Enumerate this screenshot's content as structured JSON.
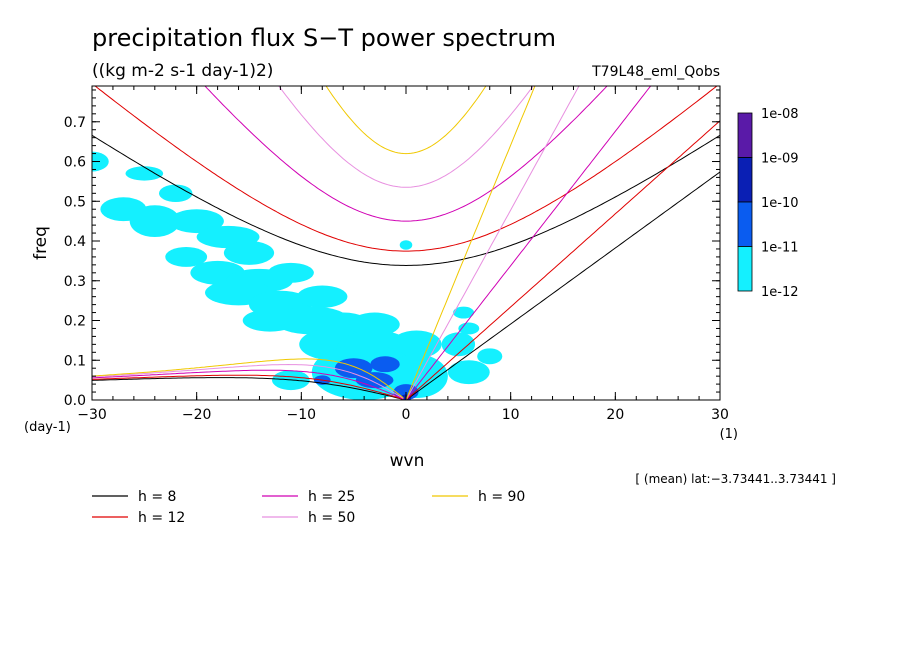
{
  "chart_data": {
    "type": "heatmap",
    "title": "precipitation flux S−T power spectrum",
    "subtitle": "((kg m-2 s-1 day-1)2)",
    "run_label": "T79L48_eml_Qobs",
    "xlabel": "wvn",
    "ylabel": "freq",
    "x_unit": "(1)",
    "y_unit": "(day-1)",
    "xlim": [
      -30,
      30
    ],
    "ylim": [
      0,
      0.79
    ],
    "x_ticks": [
      -30,
      -20,
      -10,
      0,
      10,
      20,
      30
    ],
    "x_tick_labels": [
      "−30",
      "−20",
      "−10",
      "0",
      "10",
      "20",
      "30"
    ],
    "y_ticks": [
      0,
      0.1,
      0.2,
      0.3,
      0.4,
      0.5,
      0.6,
      0.7
    ],
    "y_tick_labels": [
      "0.0",
      "0.1",
      "0.2",
      "0.3",
      "0.4",
      "0.5",
      "0.6",
      "0.7"
    ],
    "grid": false,
    "colorbar": {
      "labels": [
        "1e-08",
        "1e-09",
        "1e-10",
        "1e-11",
        "1e-12"
      ],
      "colors": [
        "#5a1aa8",
        "#0a1fb4",
        "#0a5cf0",
        "#14f0ff"
      ]
    },
    "dispersion_curves": [
      {
        "name": "h = 8",
        "equiv_depth": 8,
        "color": "#000000"
      },
      {
        "name": "h = 12",
        "equiv_depth": 12,
        "color": "#e00000"
      },
      {
        "name": "h = 25",
        "equiv_depth": 25,
        "color": "#d000b4"
      },
      {
        "name": "h = 50",
        "equiv_depth": 50,
        "color": "#e890e0"
      },
      {
        "name": "h = 90",
        "equiv_depth": 90,
        "color": "#f0c800"
      }
    ],
    "power_regions": [
      {
        "k": -30,
        "w": 0.6,
        "dk": 1.6,
        "dw": 0.025,
        "level": 0
      },
      {
        "k": -25,
        "w": 0.57,
        "dk": 1.8,
        "dw": 0.018,
        "level": 0
      },
      {
        "k": -22,
        "w": 0.52,
        "dk": 1.6,
        "dw": 0.022,
        "level": 0
      },
      {
        "k": -27,
        "w": 0.48,
        "dk": 2.2,
        "dw": 0.03,
        "level": 0
      },
      {
        "k": -24,
        "w": 0.45,
        "dk": 2.4,
        "dw": 0.04,
        "level": 0
      },
      {
        "k": -20,
        "w": 0.45,
        "dk": 2.6,
        "dw": 0.03,
        "level": 0
      },
      {
        "k": -17,
        "w": 0.41,
        "dk": 3.0,
        "dw": 0.028,
        "level": 0
      },
      {
        "k": -15,
        "w": 0.37,
        "dk": 2.4,
        "dw": 0.03,
        "level": 0
      },
      {
        "k": -21,
        "w": 0.36,
        "dk": 2.0,
        "dw": 0.025,
        "level": 0
      },
      {
        "k": -18,
        "w": 0.32,
        "dk": 2.6,
        "dw": 0.03,
        "level": 0
      },
      {
        "k": -14,
        "w": 0.3,
        "dk": 3.2,
        "dw": 0.03,
        "level": 0
      },
      {
        "k": -11,
        "w": 0.32,
        "dk": 2.2,
        "dw": 0.025,
        "level": 0
      },
      {
        "k": -16,
        "w": 0.27,
        "dk": 3.2,
        "dw": 0.032,
        "level": 0
      },
      {
        "k": -12,
        "w": 0.24,
        "dk": 3.0,
        "dw": 0.035,
        "level": 0
      },
      {
        "k": -8,
        "w": 0.26,
        "dk": 2.4,
        "dw": 0.028,
        "level": 0
      },
      {
        "k": -13,
        "w": 0.2,
        "dk": 2.6,
        "dw": 0.028,
        "level": 0
      },
      {
        "k": -9,
        "w": 0.2,
        "dk": 3.6,
        "dw": 0.035,
        "level": 0
      },
      {
        "k": -6,
        "w": 0.18,
        "dk": 3.0,
        "dw": 0.04,
        "level": 0
      },
      {
        "k": -3,
        "w": 0.19,
        "dk": 2.4,
        "dw": 0.03,
        "level": 0
      },
      {
        "k": -7,
        "w": 0.14,
        "dk": 3.2,
        "dw": 0.04,
        "level": 0
      },
      {
        "k": -3,
        "w": 0.13,
        "dk": 3.6,
        "dw": 0.045,
        "level": 0
      },
      {
        "k": 1,
        "w": 0.14,
        "dk": 2.4,
        "dw": 0.035,
        "level": 0
      },
      {
        "k": -4,
        "w": 0.07,
        "dk": 5.0,
        "dw": 0.07,
        "level": 0
      },
      {
        "k": 1,
        "w": 0.06,
        "dk": 3.0,
        "dw": 0.055,
        "level": 0
      },
      {
        "k": 5,
        "w": 0.14,
        "dk": 1.6,
        "dw": 0.03,
        "level": 0
      },
      {
        "k": 6,
        "w": 0.07,
        "dk": 2.0,
        "dw": 0.03,
        "level": 0
      },
      {
        "k": 8,
        "w": 0.11,
        "dk": 1.2,
        "dw": 0.02,
        "level": 0
      },
      {
        "k": 6,
        "w": 0.18,
        "dk": 1.0,
        "dw": 0.015,
        "level": 0
      },
      {
        "k": 5.5,
        "w": 0.22,
        "dk": 1.0,
        "dw": 0.015,
        "level": 0
      },
      {
        "k": -11,
        "w": 0.05,
        "dk": 1.8,
        "dw": 0.025,
        "level": 0
      },
      {
        "k": 0,
        "w": 0.39,
        "dk": 0.6,
        "dw": 0.012,
        "level": 0
      },
      {
        "k": -5,
        "w": 0.08,
        "dk": 1.8,
        "dw": 0.025,
        "level": 1
      },
      {
        "k": -2,
        "w": 0.09,
        "dk": 1.4,
        "dw": 0.02,
        "level": 1
      },
      {
        "k": -3,
        "w": 0.05,
        "dk": 1.8,
        "dw": 0.02,
        "level": 1
      },
      {
        "k": 0,
        "w": 0.02,
        "dk": 1.2,
        "dw": 0.02,
        "level": 1
      },
      {
        "k": -8,
        "w": 0.05,
        "dk": 0.8,
        "dw": 0.012,
        "level": 1
      },
      {
        "k": 0,
        "w": 0.006,
        "dk": 0.5,
        "dw": 0.008,
        "level": 2
      }
    ],
    "footnote": "[ (mean) lat:−3.73441..3.73441 ]"
  }
}
